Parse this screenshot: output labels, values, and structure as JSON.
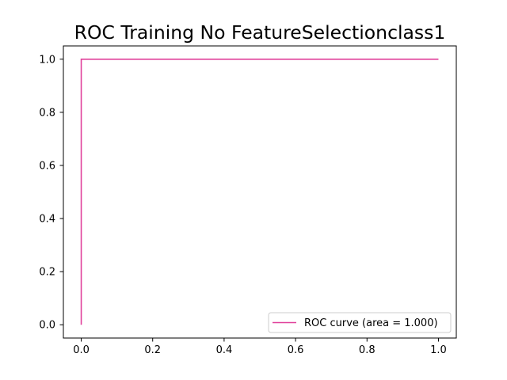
{
  "chart_data": {
    "type": "line",
    "title": "ROC Training No FeatureSelectionclass1",
    "xlabel": "",
    "ylabel": "",
    "xlim": [
      -0.05,
      1.05
    ],
    "ylim": [
      -0.05,
      1.05
    ],
    "x_ticks": [
      0.0,
      0.2,
      0.4,
      0.6,
      0.8,
      1.0
    ],
    "x_tick_labels": [
      "0.0",
      "0.2",
      "0.4",
      "0.6",
      "0.8",
      "1.0"
    ],
    "y_ticks": [
      0.0,
      0.2,
      0.4,
      0.6,
      0.8,
      1.0
    ],
    "y_tick_labels": [
      "0.0",
      "0.2",
      "0.4",
      "0.6",
      "0.8",
      "1.0"
    ],
    "grid": false,
    "legend_position": "bottom-right",
    "series": [
      {
        "name": "ROC curve (area = 1.000)",
        "color": "#e0409a",
        "x": [
          0.0,
          0.0,
          1.0
        ],
        "y": [
          0.0,
          1.0,
          1.0
        ]
      }
    ]
  }
}
